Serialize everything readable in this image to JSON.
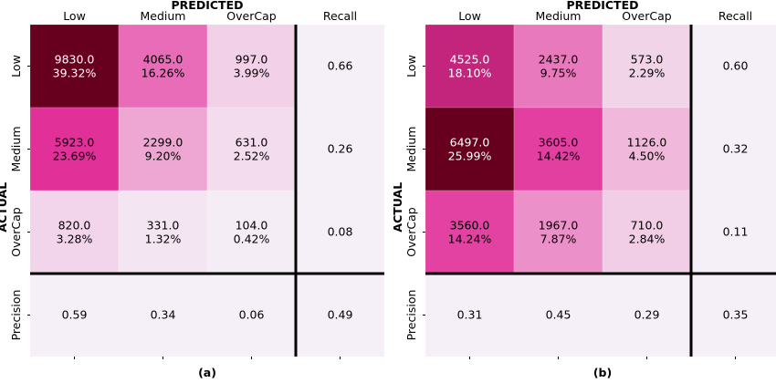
{
  "chart_data": [
    {
      "type": "heatmap",
      "panel_label": "(a)",
      "title": "PREDICTED",
      "ylabel": "ACTUAL",
      "col_headers": [
        "Low",
        "Medium",
        "OverCap",
        "Recall"
      ],
      "row_labels": [
        "Low",
        "Medium",
        "OverCap",
        "Precision"
      ],
      "counts": [
        [
          9830.0,
          4065.0,
          997.0
        ],
        [
          5923.0,
          2299.0,
          631.0
        ],
        [
          820.0,
          331.0,
          104.0
        ]
      ],
      "cells": [
        [
          "9830.0",
          "4065.0",
          "997.0"
        ],
        [
          "5923.0",
          "2299.0",
          "631.0"
        ],
        [
          "820.0",
          "331.0",
          "104.0"
        ]
      ],
      "percents": [
        [
          "39.32%",
          "16.26%",
          "3.99%"
        ],
        [
          "23.69%",
          "9.20%",
          "2.52%"
        ],
        [
          "3.28%",
          "1.32%",
          "0.42%"
        ]
      ],
      "recall": [
        "0.66",
        "0.26",
        "0.08"
      ],
      "precision": [
        "0.59",
        "0.34",
        "0.06"
      ],
      "overall": "0.49"
    },
    {
      "type": "heatmap",
      "panel_label": "(b)",
      "title": "PREDICTED",
      "ylabel": "ACTUAL",
      "col_headers": [
        "Low",
        "Medium",
        "OverCap",
        "Recall"
      ],
      "row_labels": [
        "Low",
        "Medium",
        "OverCap",
        "Precision"
      ],
      "counts": [
        [
          4525.0,
          2437.0,
          573.0
        ],
        [
          6497.0,
          3605.0,
          1126.0
        ],
        [
          3560.0,
          1967.0,
          710.0
        ]
      ],
      "cells": [
        [
          "4525.0",
          "2437.0",
          "573.0"
        ],
        [
          "6497.0",
          "3605.0",
          "1126.0"
        ],
        [
          "3560.0",
          "1967.0",
          "710.0"
        ]
      ],
      "percents": [
        [
          "18.10%",
          "9.75%",
          "2.29%"
        ],
        [
          "25.99%",
          "14.42%",
          "4.50%"
        ],
        [
          "14.24%",
          "7.87%",
          "2.84%"
        ]
      ],
      "recall": [
        "0.60",
        "0.32",
        "0.11"
      ],
      "precision": [
        "0.31",
        "0.45",
        "0.29"
      ],
      "overall": "0.35"
    }
  ],
  "colors": {
    "low": "#f5f0f7",
    "mid": "#e2319a",
    "high": "#67001f",
    "separator": "#000000"
  }
}
